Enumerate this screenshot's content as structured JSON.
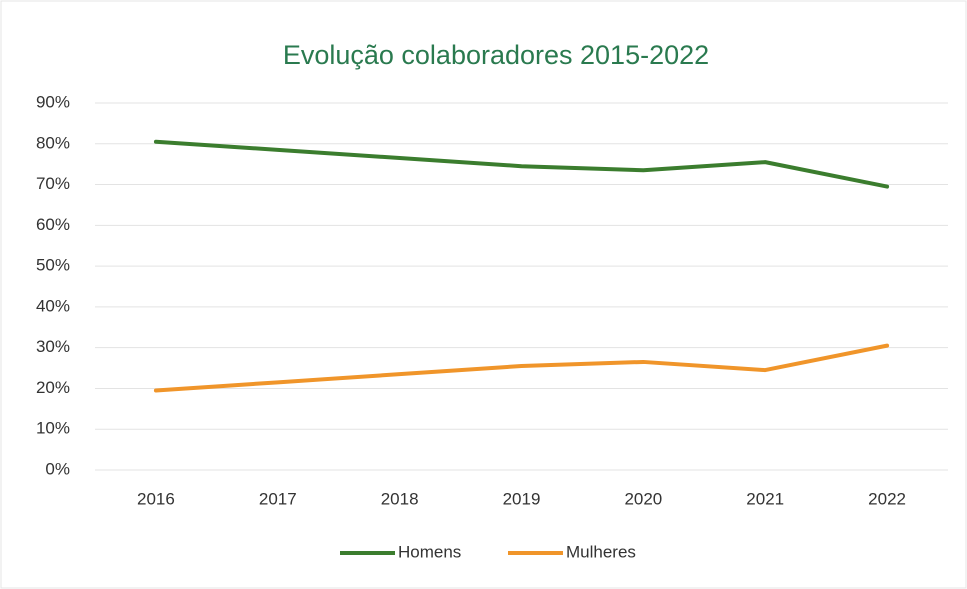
{
  "chart_data": {
    "type": "line",
    "title": "Evolução colaboradores 2015-2022",
    "categories": [
      "2016",
      "2017",
      "2018",
      "2019",
      "2020",
      "2021",
      "2022"
    ],
    "series": [
      {
        "name": "Homens",
        "color": "#3b7d2e",
        "values": [
          80.5,
          78.5,
          76.5,
          74.5,
          73.5,
          75.5,
          69.5
        ]
      },
      {
        "name": "Mulheres",
        "color": "#f0952a",
        "values": [
          19.5,
          21.5,
          23.5,
          25.5,
          26.5,
          24.5,
          30.5
        ]
      }
    ],
    "ylim": [
      0,
      90
    ],
    "yticks": [
      {
        "value": 0,
        "label": "0%"
      },
      {
        "value": 10,
        "label": "10%"
      },
      {
        "value": 20,
        "label": "20%"
      },
      {
        "value": 30,
        "label": "30%"
      },
      {
        "value": 40,
        "label": "40%"
      },
      {
        "value": 50,
        "label": "50%"
      },
      {
        "value": 60,
        "label": "60%"
      },
      {
        "value": 70,
        "label": "70%"
      },
      {
        "value": 80,
        "label": "80%"
      },
      {
        "value": 90,
        "label": "90%"
      }
    ],
    "grid": true,
    "legend": "bottom"
  }
}
